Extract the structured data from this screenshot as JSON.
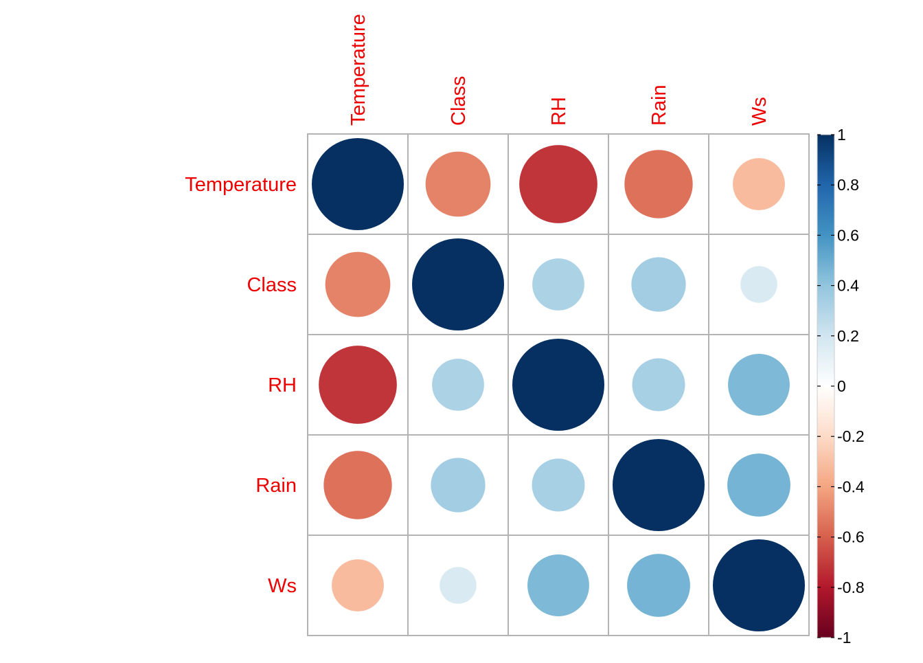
{
  "chart_data": {
    "type": "heatmap",
    "subtype": "correlation-circle-matrix",
    "variables": [
      "Temperature",
      "Class",
      "RH",
      "Rain",
      "Ws"
    ],
    "row_labels": [
      "Temperature",
      "Class",
      "RH",
      "Rain",
      "Ws"
    ],
    "col_labels": [
      "Temperature",
      "Class",
      "RH",
      "Rain",
      "Ws"
    ],
    "matrix": [
      [
        1.0,
        -0.5,
        -0.72,
        -0.55,
        -0.32
      ],
      [
        -0.5,
        1.0,
        0.32,
        0.35,
        0.16
      ],
      [
        -0.72,
        0.32,
        1.0,
        0.33,
        0.45
      ],
      [
        -0.55,
        0.35,
        0.33,
        1.0,
        0.47
      ],
      [
        -0.32,
        0.16,
        0.45,
        0.47,
        1.0
      ]
    ],
    "label_color": "#ee0000",
    "grid_color": "#b3b3b3",
    "colorbar": {
      "range": [
        -1,
        1
      ],
      "ticks": [
        "1",
        "0.8",
        "0.6",
        "0.4",
        "0.2",
        "0",
        "-0.2",
        "-0.4",
        "-0.6",
        "-0.8",
        "-1"
      ],
      "tick_values": [
        1,
        0.8,
        0.6,
        0.4,
        0.2,
        0,
        -0.2,
        -0.4,
        -0.6,
        -0.8,
        -1
      ],
      "palette": [
        "#67001f",
        "#b2182b",
        "#d6604d",
        "#f4a582",
        "#fddbc7",
        "#ffffff",
        "#d1e5f0",
        "#92c5de",
        "#4393c3",
        "#2166ac",
        "#053061"
      ],
      "placement": "right"
    },
    "grid": true
  }
}
